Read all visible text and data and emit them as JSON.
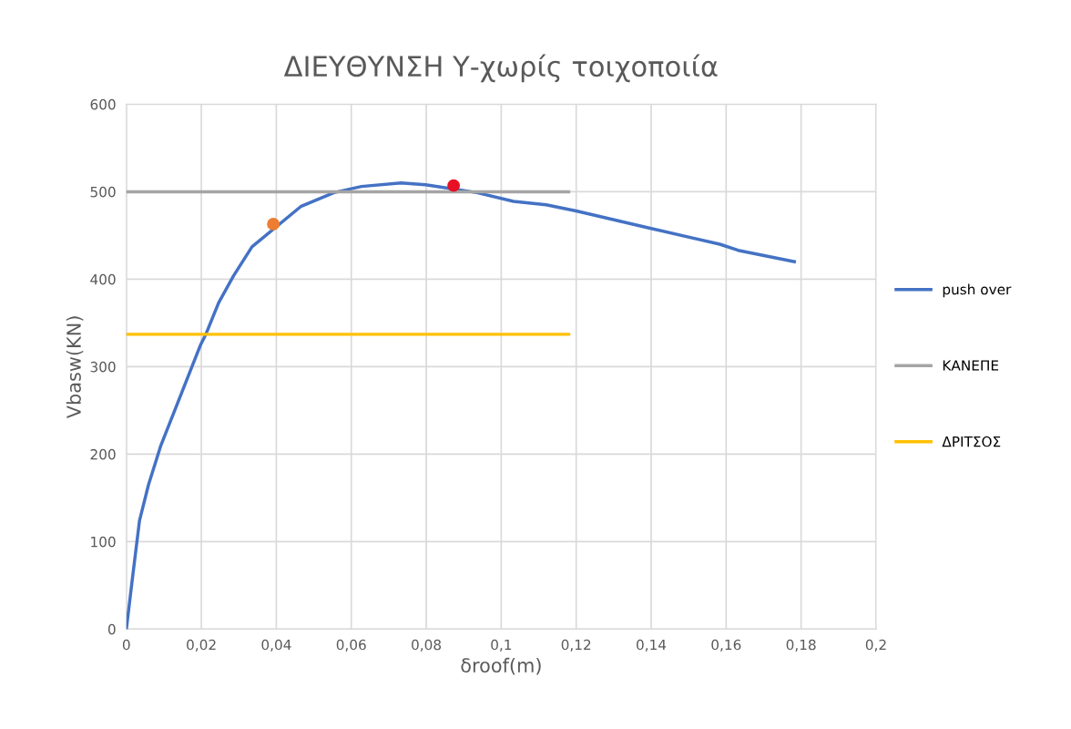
{
  "chart_data": {
    "type": "line",
    "title": "ΔΙΕΥΘΥΝΣΗ Υ-χωρίς τοιχοποιία",
    "xlabel": "δroof(m)",
    "ylabel": "Vbasw(KN)",
    "xlim": [
      0,
      0.2
    ],
    "xticks": [
      {
        "value": 0,
        "label": "0"
      },
      {
        "value": 0.02,
        "label": "0,02"
      },
      {
        "value": 0.04,
        "label": "0,04"
      },
      {
        "value": 0.06,
        "label": "0,06"
      },
      {
        "value": 0.08,
        "label": "0,08"
      },
      {
        "value": 0.1,
        "label": "0,1"
      },
      {
        "value": 0.12,
        "label": "0,12"
      },
      {
        "value": 0.14,
        "label": "0,14"
      },
      {
        "value": 0.16,
        "label": "0,16"
      },
      {
        "value": 0.18,
        "label": "0,18"
      },
      {
        "value": 0.2,
        "label": "0,2"
      }
    ],
    "ylim": [
      0,
      600
    ],
    "yticks": [
      0,
      100,
      200,
      300,
      400,
      500,
      600
    ],
    "grid": true,
    "legend": "right",
    "marker": "none",
    "series": [
      {
        "name": "push over",
        "color": "#4472c4",
        "x": [
          0,
          0.0015,
          0.0035,
          0.0059,
          0.0092,
          0.014,
          0.0197,
          0.0213,
          0.0246,
          0.0286,
          0.0335,
          0.0465,
          0.0554,
          0.0627,
          0.0733,
          0.0798,
          0.0935,
          0.1033,
          0.112,
          0.12,
          0.14,
          0.1583,
          0.1632,
          0.1782
        ],
        "values": [
          0,
          54,
          124,
          165,
          210,
          262,
          324,
          338,
          373,
          404,
          437,
          483,
          499,
          506,
          510,
          508,
          499,
          489,
          485,
          478,
          458,
          440,
          433,
          420
        ]
      },
      {
        "name": "ΚΑΝΕΠΕ",
        "color": "#a5a5a5",
        "x": [
          0,
          0.118
        ],
        "values": [
          500,
          500
        ]
      },
      {
        "name": "ΔΡΙΤΣΟΣ",
        "color": "#ffc000",
        "x": [
          0,
          0.118
        ],
        "values": [
          337,
          337
        ]
      },
      {
        "type": "scatter",
        "color": "#ed7d31",
        "x": [
          0.0392
        ],
        "values": [
          463
        ],
        "marker": "circle"
      },
      {
        "type": "scatter",
        "color": "#e81123",
        "x": [
          0.0873
        ],
        "values": [
          507
        ],
        "marker": "circle"
      }
    ]
  }
}
